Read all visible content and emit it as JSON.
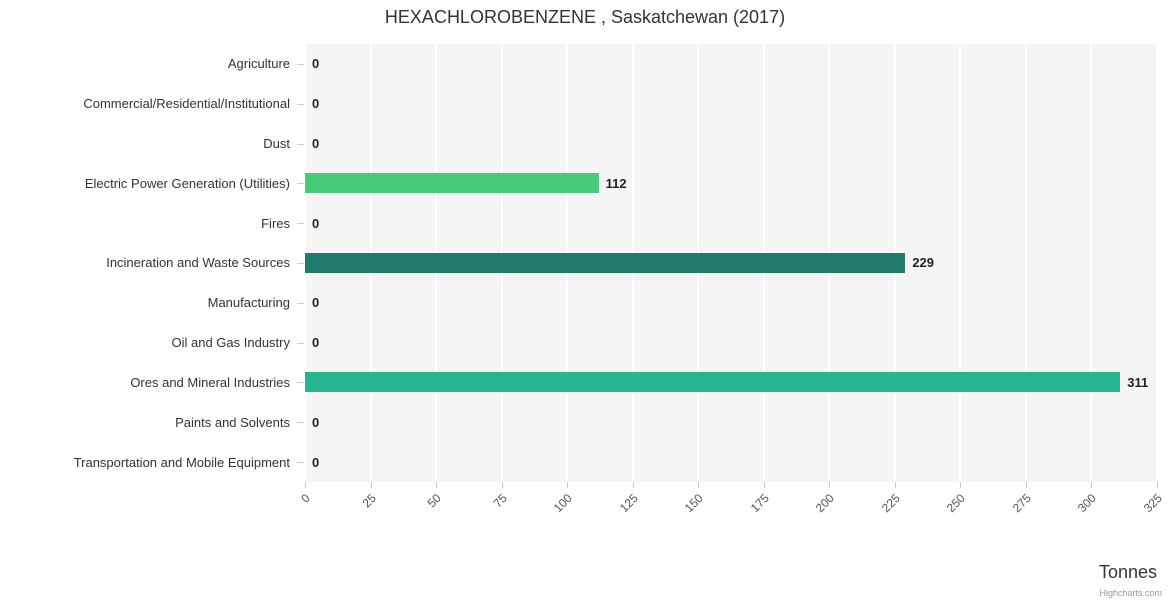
{
  "chart_data": {
    "type": "bar",
    "orientation": "horizontal",
    "title": "HEXACHLOROBENZENE , Saskatchewan (2017)",
    "xlabel": "Tonnes",
    "categories": [
      "Agriculture",
      "Commercial/Residential/Institutional",
      "Dust",
      "Electric Power Generation (Utilities)",
      "Fires",
      "Incineration and Waste Sources",
      "Manufacturing",
      "Oil and Gas Industry",
      "Ores and Mineral Industries",
      "Paints and Solvents",
      "Transportation and Mobile Equipment"
    ],
    "values": [
      0,
      0,
      0,
      112,
      0,
      229,
      0,
      0,
      311,
      0,
      0
    ],
    "data_labels": [
      "0",
      "0",
      "0",
      "112",
      "0",
      "229",
      "0",
      "0",
      "311",
      "0",
      "0"
    ],
    "bar_colors": [
      null,
      null,
      null,
      "#46cb78",
      null,
      "#217a6d",
      null,
      null,
      "#29b38e",
      null,
      null
    ],
    "xticks": [
      0,
      25,
      50,
      75,
      100,
      125,
      150,
      175,
      200,
      225,
      250,
      275,
      300,
      325
    ],
    "xlim": [
      0,
      325
    ],
    "grid": true,
    "gridline_color": "#ffffff",
    "plot_bg": "#f5f5f5",
    "legend": "none",
    "credit": "Highcharts.com"
  }
}
